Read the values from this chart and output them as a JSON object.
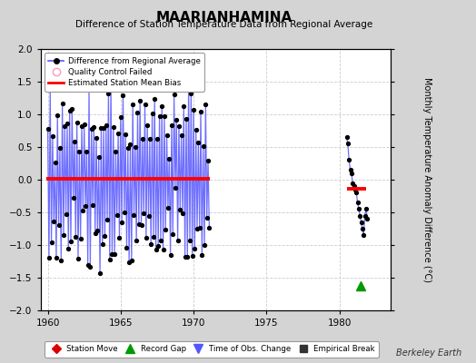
{
  "title": "MAARIANHAMINA",
  "subtitle": "Difference of Station Temperature Data from Regional Average",
  "ylabel_right": "Monthly Temperature Anomaly Difference (°C)",
  "xlim": [
    1959.5,
    1983.5
  ],
  "ylim": [
    -2,
    2
  ],
  "yticks": [
    -2,
    -1.5,
    -1,
    -0.5,
    0,
    0.5,
    1,
    1.5,
    2
  ],
  "xticks": [
    1960,
    1965,
    1970,
    1975,
    1980
  ],
  "fig_bg_color": "#d4d4d4",
  "plot_bg_color": "#ffffff",
  "grid_color": "#cccccc",
  "line_color": "#5555ff",
  "dot_color": "#000000",
  "bias_color": "#ff0000",
  "record_gap_color": "#009900",
  "record_gap_x": 1981.45,
  "record_gap_y": -1.62,
  "segment1_bias": 0.02,
  "segment1_start": 1959.92,
  "segment1_end": 1971.1,
  "segment2_bias": -0.14,
  "segment2_start": 1980.5,
  "segment2_end": 1981.85,
  "watermark": "Berkeley Earth",
  "seed1": 42,
  "seed2": 99,
  "n1": 134,
  "t1_start": 1960.0,
  "t1_end": 1971.08,
  "n2": 18,
  "t2_start": 1980.5,
  "t2_end": 1981.92,
  "amplitude1": 0.75,
  "amplitude2": 0.55
}
